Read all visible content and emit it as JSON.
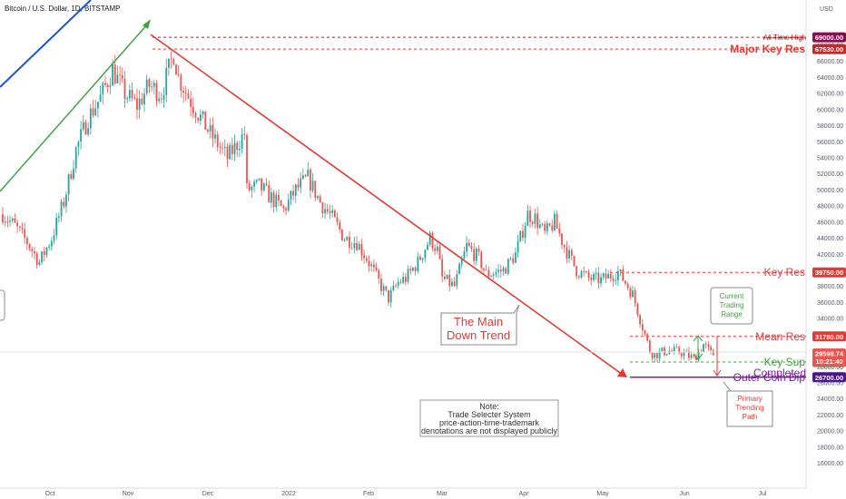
{
  "chart_data": {
    "type": "candlestick",
    "title": "Bitcoin / U.S. Dollar, 1D, BITSTAMP",
    "currency_label": "USD",
    "ylim": [
      15000,
      71000
    ],
    "y_ticks": [
      16000,
      18000,
      20000,
      22000,
      24000,
      26000,
      28000,
      30000,
      32000,
      34000,
      36000,
      38000,
      40000,
      42000,
      44000,
      46000,
      48000,
      50000,
      52000,
      54000,
      56000,
      58000,
      60000,
      62000,
      64000,
      66000,
      68000
    ],
    "x_ticks": [
      "Oct",
      "Nov",
      "Dec",
      "2022",
      "Feb",
      "Mar",
      "Apr",
      "May",
      "Jun",
      "Jul"
    ],
    "close_path": [
      [
        0,
        47000
      ],
      [
        5,
        45500
      ],
      [
        10,
        43500
      ],
      [
        15,
        41000
      ],
      [
        20,
        44000
      ],
      [
        25,
        48500
      ],
      [
        30,
        55000
      ],
      [
        35,
        59000
      ],
      [
        40,
        61500
      ],
      [
        45,
        65000
      ],
      [
        50,
        62000
      ],
      [
        55,
        60500
      ],
      [
        60,
        63000
      ],
      [
        65,
        62000
      ],
      [
        70,
        67000
      ],
      [
        72,
        64000
      ],
      [
        78,
        60500
      ],
      [
        85,
        57000
      ],
      [
        92,
        54000
      ],
      [
        99,
        57000
      ],
      [
        100,
        50000
      ],
      [
        105,
        50500
      ],
      [
        110,
        49000
      ],
      [
        115,
        47500
      ],
      [
        120,
        50000
      ],
      [
        125,
        51500
      ],
      [
        130,
        48500
      ],
      [
        135,
        46500
      ],
      [
        140,
        44000
      ],
      [
        145,
        43500
      ],
      [
        150,
        41000
      ],
      [
        155,
        38000
      ],
      [
        158,
        36500
      ],
      [
        162,
        38500
      ],
      [
        165,
        39000
      ],
      [
        170,
        41000
      ],
      [
        175,
        44000
      ],
      [
        178,
        42500
      ],
      [
        180,
        39000
      ],
      [
        185,
        38000
      ],
      [
        190,
        43000
      ],
      [
        195,
        41500
      ],
      [
        198,
        39500
      ],
      [
        205,
        40000
      ],
      [
        210,
        42000
      ],
      [
        215,
        47000
      ],
      [
        218,
        46500
      ],
      [
        222,
        44500
      ],
      [
        226,
        46000
      ],
      [
        230,
        43000
      ],
      [
        235,
        40000
      ],
      [
        240,
        39000
      ],
      [
        245,
        38800
      ],
      [
        250,
        39500
      ],
      [
        252,
        39800
      ],
      [
        255,
        38500
      ],
      [
        258,
        37000
      ],
      [
        262,
        33000
      ],
      [
        265,
        30000
      ],
      [
        267,
        29500
      ],
      [
        272,
        30000
      ],
      [
        278,
        29800
      ],
      [
        283,
        29000
      ],
      [
        287,
        30800
      ],
      [
        290,
        29600
      ],
      [
        291,
        29598.74
      ]
    ],
    "levels": [
      {
        "name": "All Time High",
        "value": 69000,
        "badge": "69000.00"
      },
      {
        "name": "Major Key Res",
        "value": 67530,
        "badge": "67530.00"
      },
      {
        "name": "Key Res",
        "value": 39750,
        "badge": "39750.00"
      },
      {
        "name": "Mean Res",
        "value": 31780,
        "badge": "31780.00"
      },
      {
        "name": "Key Sup",
        "value": 28600,
        "badge": "28600.00"
      },
      {
        "name": "Outer Coin Dip",
        "value": 26700,
        "badge": "26700.00"
      }
    ],
    "current_price": {
      "value": 29598.74,
      "price_label": "29598.74",
      "countdown": "10:21:40"
    },
    "grid": false
  },
  "annotations": {
    "main_trend": [
      "The Main",
      "Down Trend"
    ],
    "current_range": [
      "Current",
      "Trading",
      "Range"
    ],
    "primary_path": [
      "Primary",
      "Trending",
      "Path"
    ],
    "completed": "Completed",
    "note": [
      "Note:",
      "Trade Selecter System",
      "price-action-time-trademark",
      "denotations are not displayed publicly"
    ]
  },
  "colors": {
    "up": "#26a69a",
    "down": "#ef5350",
    "resistance": "#e53935",
    "support": "#43a047",
    "dip": "#7b1fa2",
    "trend_up": "#43a047",
    "trend_down": "#e53935",
    "channel": "#1e53d6",
    "ath_badge": "#880e4f"
  }
}
